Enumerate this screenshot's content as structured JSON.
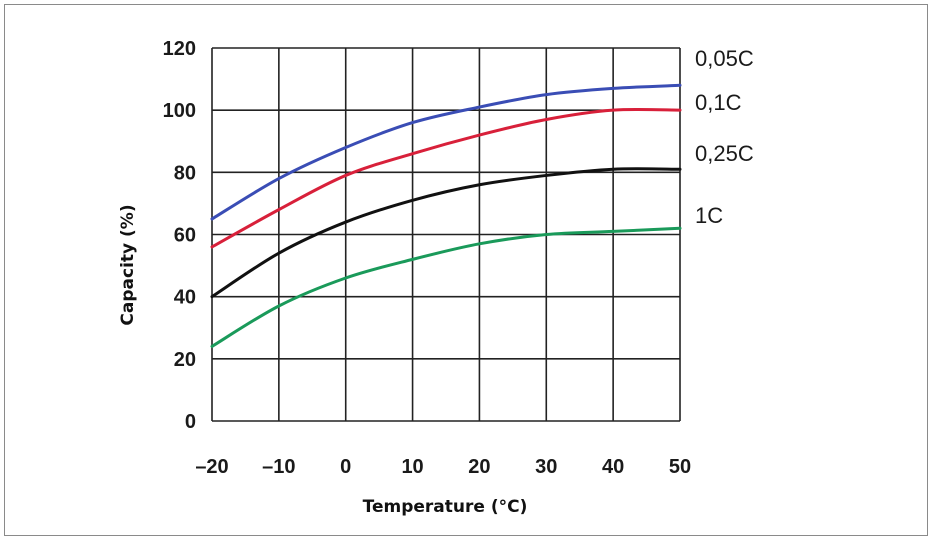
{
  "chart_data": {
    "type": "line",
    "title": "",
    "xlabel": "Temperature (°C)",
    "ylabel": "Capacity (%)",
    "xlim": [
      -20,
      50
    ],
    "ylim": [
      0,
      120
    ],
    "xticks": [
      -20,
      -10,
      0,
      10,
      20,
      30,
      40,
      50
    ],
    "yticks": [
      0,
      20,
      40,
      60,
      80,
      100,
      120
    ],
    "grid": true,
    "legend_placement": "right",
    "x": [
      -20,
      -10,
      0,
      10,
      20,
      30,
      40,
      50
    ],
    "series": [
      {
        "name": "0,05C",
        "color": "#3a4db5",
        "values": [
          65,
          78,
          88,
          96,
          101,
          105,
          107,
          108
        ]
      },
      {
        "name": "0,1C",
        "color": "#d8203a",
        "values": [
          56,
          68,
          79,
          86,
          92,
          97,
          100,
          100
        ]
      },
      {
        "name": "0,25C",
        "color": "#111111",
        "values": [
          40,
          54,
          64,
          71,
          76,
          79,
          81,
          81
        ]
      },
      {
        "name": "1C",
        "color": "#1a9a5a",
        "values": [
          24,
          37,
          46,
          52,
          57,
          60,
          61,
          62
        ]
      }
    ]
  }
}
